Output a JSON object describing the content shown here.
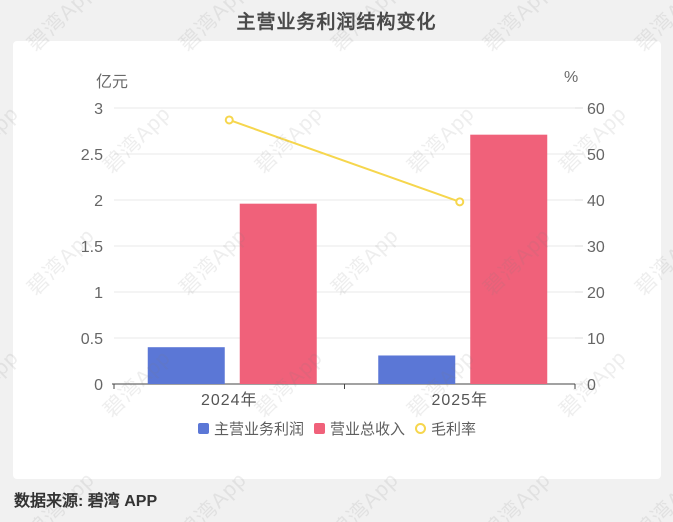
{
  "title": "主营业务利润结构变化",
  "footer": "数据来源: 碧湾 APP",
  "watermark_text": "碧湾App",
  "colors": {
    "page_background": "#f1f1f1",
    "panel_background": "#ffffff",
    "title_text": "#4a4a4a",
    "axis_text": "#666666",
    "grid_line": "#e9e9e9",
    "axis_line": "#444444",
    "blue_bar": "#5b77d6",
    "red_bar": "#f0617a",
    "yellow_line": "#f6d64d"
  },
  "chart_data": {
    "type": "bar",
    "title": "主营业务利润结构变化",
    "categories": [
      "2024年",
      "2025年"
    ],
    "series": [
      {
        "id": "main-profit",
        "name": "主营业务利润",
        "type": "bar",
        "axis": "left",
        "color": "#5b77d6",
        "values": [
          0.4,
          0.31
        ]
      },
      {
        "id": "total-revenue",
        "name": "营业总收入",
        "type": "bar",
        "axis": "left",
        "color": "#f0617a",
        "values": [
          1.96,
          2.71
        ]
      },
      {
        "id": "gross-margin",
        "name": "毛利率",
        "type": "line",
        "axis": "right",
        "color": "#f6d64d",
        "values": [
          57.4,
          39.6
        ]
      }
    ],
    "left_axis": {
      "label": "亿元",
      "min": 0,
      "max": 3,
      "ticks": [
        0,
        0.5,
        1,
        1.5,
        2,
        2.5,
        3
      ]
    },
    "right_axis": {
      "label": "%",
      "min": 0,
      "max": 60,
      "ticks": [
        0,
        10,
        20,
        30,
        40,
        50,
        60
      ]
    },
    "grid": true,
    "legend_position": "bottom",
    "legend": [
      "主营业务利润",
      "营业总收入",
      "毛利率"
    ]
  }
}
